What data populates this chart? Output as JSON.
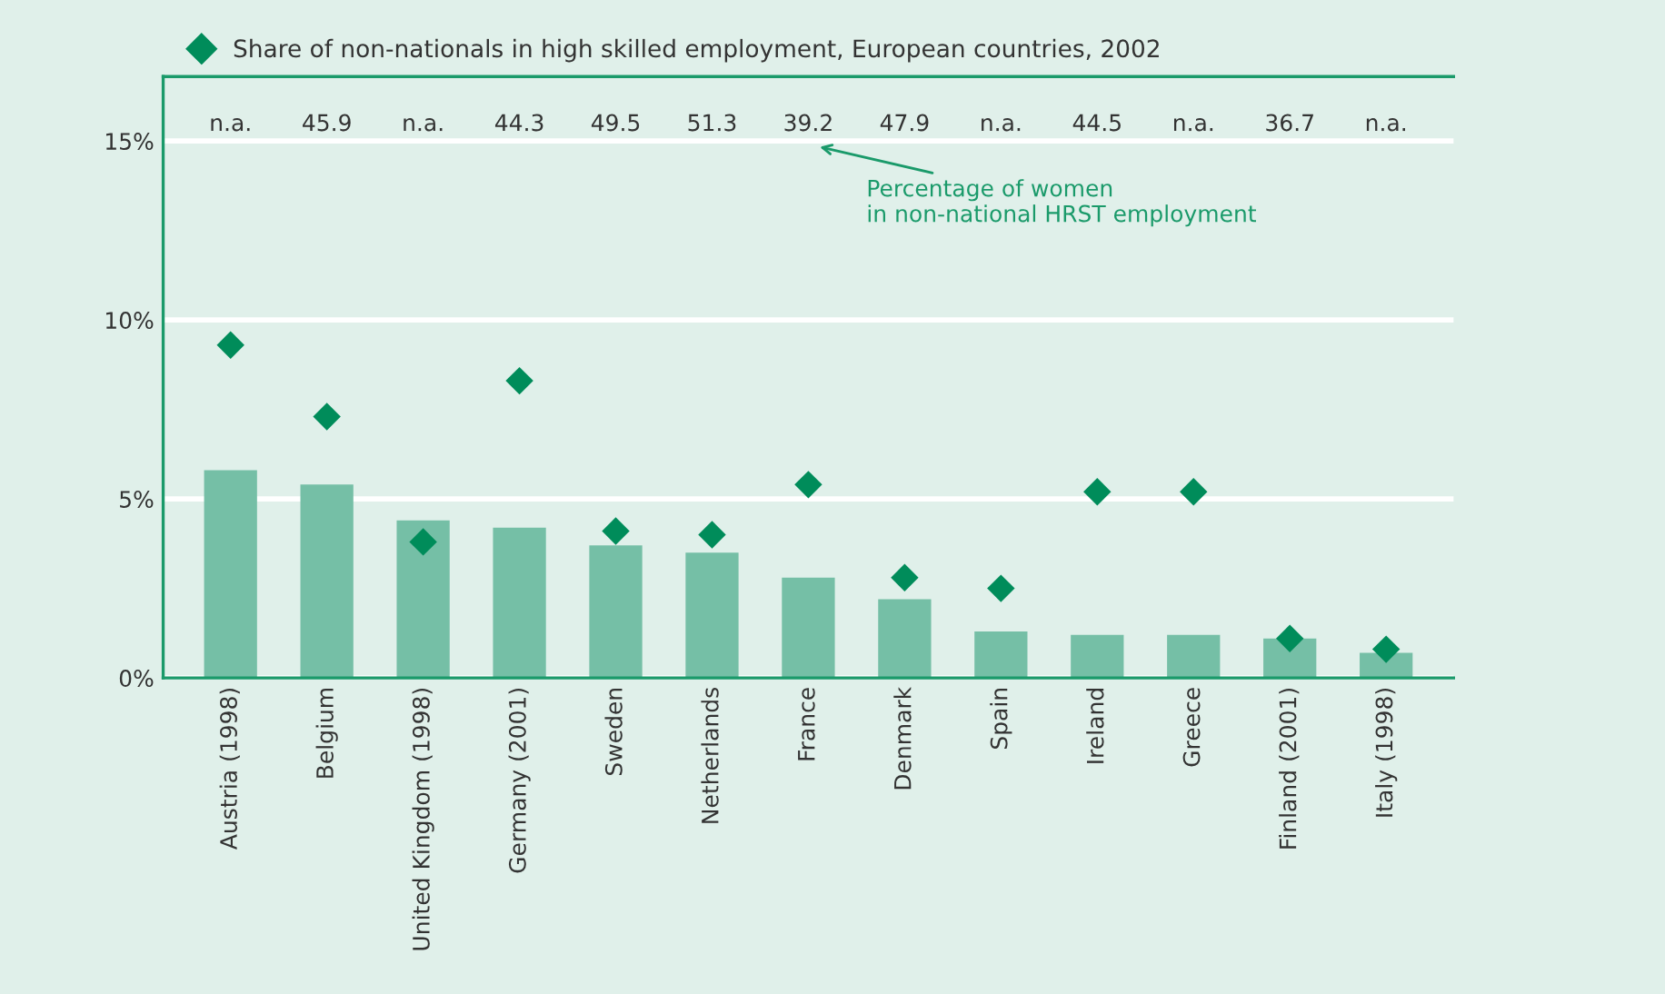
{
  "chart_data": {
    "type": "bar",
    "categories": [
      "Austria (1998)",
      "Belgium",
      "United Kingdom (1998)",
      "Germany (2001)",
      "Sweden",
      "Netherlands",
      "France",
      "Denmark",
      "Spain",
      "Ireland",
      "Greece",
      "Finland (2001)",
      "Italy (1998)"
    ],
    "series": [
      {
        "color": "#75bfa6",
        "values": [
          5.8,
          5.4,
          4.4,
          4.2,
          3.7,
          3.5,
          2.8,
          2.2,
          1.3,
          1.2,
          1.2,
          1.1,
          0.7
        ]
      },
      {
        "type": "scatter",
        "name": "Share of non-nationals in high skilled employment, European countries, 2002",
        "color": "#008c5a",
        "marker": "diamond",
        "values": [
          9.3,
          7.3,
          3.8,
          8.3,
          4.1,
          4.0,
          5.4,
          2.8,
          2.5,
          5.2,
          5.2,
          1.1,
          0.8
        ]
      }
    ],
    "ylim": [
      0,
      16.8
    ],
    "yticks": [
      {
        "value": 0,
        "label": "0%"
      },
      {
        "value": 5,
        "label": "5%"
      },
      {
        "value": 10,
        "label": "10%"
      },
      {
        "value": 15,
        "label": "15%"
      }
    ],
    "grid": "y",
    "legend": "top left",
    "annotations": [
      "n.a.",
      "45.9",
      "n.a.",
      "44.3",
      "49.5",
      "51.3",
      "39.2",
      "47.9",
      "n.a.",
      "44.5",
      "n.a.",
      "36.7",
      "n.a.",
      "Percentage of women\nin non-national HRST employment"
    ]
  }
}
